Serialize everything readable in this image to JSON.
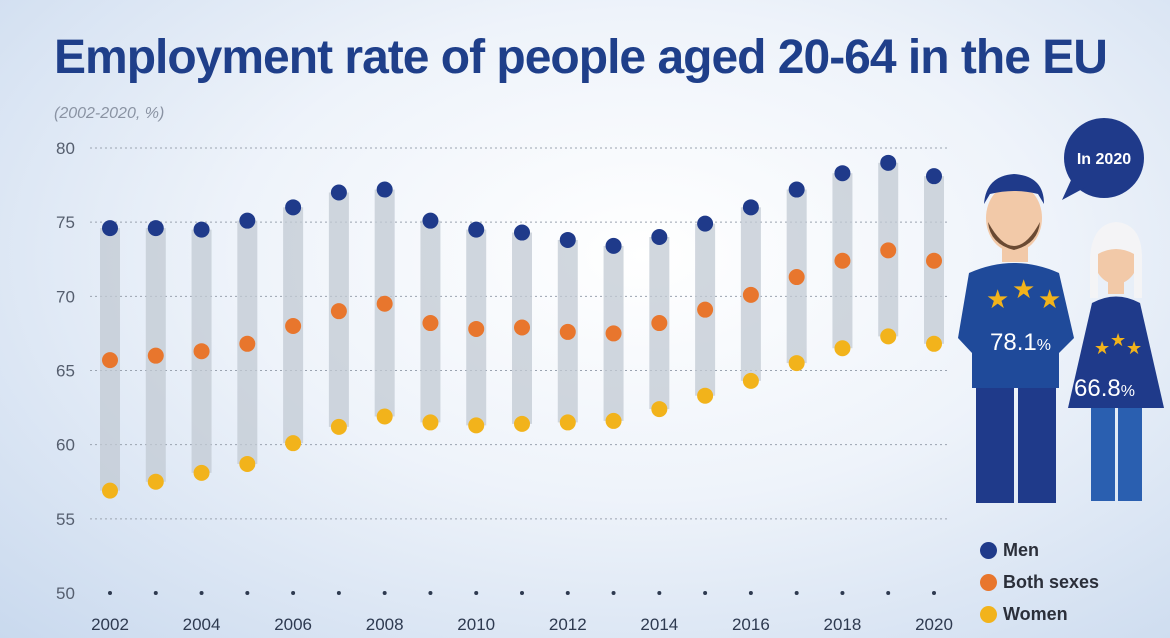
{
  "title": "Employment rate of people aged 20-64 in the EU",
  "subtitle": "(2002-2020, %)",
  "callout": {
    "label": "In 2020",
    "men_value": "78.1",
    "women_value": "66.8",
    "unit": "%"
  },
  "colors": {
    "men": "#1f3a8a",
    "both": "#e8762d",
    "women": "#f2b31b",
    "range_bar": "#c2c9d3",
    "title": "#1f3f8a"
  },
  "legend": [
    {
      "label": "Men",
      "key": "men"
    },
    {
      "label": "Both sexes",
      "key": "both"
    },
    {
      "label": "Women",
      "key": "women"
    }
  ],
  "chart_data": {
    "type": "scatter",
    "title": "Employment rate of people aged 20-64 in the EU",
    "subtitle": "(2002-2020, %)",
    "x": [
      2002,
      2003,
      2004,
      2005,
      2006,
      2007,
      2008,
      2009,
      2010,
      2011,
      2012,
      2013,
      2014,
      2015,
      2016,
      2017,
      2018,
      2019,
      2020
    ],
    "x_tick_labels": [
      "2002",
      "2004",
      "2006",
      "2008",
      "2010",
      "2012",
      "2014",
      "2016",
      "2018",
      "2020"
    ],
    "y_ticks": [
      50,
      55,
      60,
      65,
      70,
      75,
      80
    ],
    "ylim": [
      50,
      80
    ],
    "grid": true,
    "legend_position": "bottom-right",
    "series": [
      {
        "name": "Men",
        "key": "men",
        "values": [
          74.6,
          74.6,
          74.5,
          75.1,
          76.0,
          77.0,
          77.2,
          75.1,
          74.5,
          74.3,
          73.8,
          73.4,
          74.0,
          74.9,
          76.0,
          77.2,
          78.3,
          79.0,
          78.1
        ]
      },
      {
        "name": "Both sexes",
        "key": "both",
        "values": [
          65.7,
          66.0,
          66.3,
          66.8,
          68.0,
          69.0,
          69.5,
          68.2,
          67.8,
          67.9,
          67.6,
          67.5,
          68.2,
          69.1,
          70.1,
          71.3,
          72.4,
          73.1,
          72.4
        ]
      },
      {
        "name": "Women",
        "key": "women",
        "values": [
          56.9,
          57.5,
          58.1,
          58.7,
          60.1,
          61.2,
          61.9,
          61.5,
          61.3,
          61.4,
          61.5,
          61.6,
          62.4,
          63.3,
          64.3,
          65.5,
          66.5,
          67.3,
          66.8
        ]
      }
    ]
  }
}
